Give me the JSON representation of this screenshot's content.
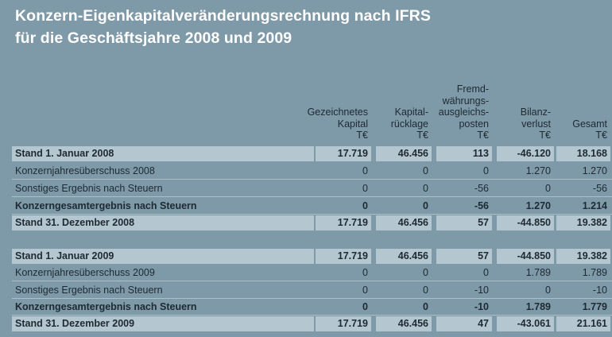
{
  "title": [
    "Konzern-Eigenkapitalveränderungsrechnung nach IFRS",
    "für die Geschäftsjahre 2008 und 2009"
  ],
  "columns": [
    [
      "Gezeichnetes",
      "Kapital",
      "T€"
    ],
    [
      "Kapital-",
      "rücklage",
      "T€"
    ],
    [
      "Fremd-",
      "währungs-",
      "ausgleichs-",
      "posten",
      "T€"
    ],
    [
      "Bilanz-",
      "verlust",
      "T€"
    ],
    [
      "Gesamt",
      "T€"
    ]
  ],
  "rows": [
    {
      "label": "Stand 1. Januar 2008",
      "values": [
        "17.719",
        "46.456",
        "113",
        "-46.120",
        "18.168"
      ],
      "style": "bold light"
    },
    {
      "label": "Konzernjahresüberschuss 2008",
      "values": [
        "0",
        "0",
        "0",
        "1.270",
        "1.270"
      ],
      "style": ""
    },
    {
      "label": "Sonstiges Ergebnis nach Steuern",
      "values": [
        "0",
        "0",
        "-56",
        "0",
        "-56"
      ],
      "style": ""
    },
    {
      "label": "Konzerngesamtergebnis nach Steuern",
      "values": [
        "0",
        "0",
        "-56",
        "1.270",
        "1.214"
      ],
      "style": "bold"
    },
    {
      "label": "Stand 31. Dezember 2008",
      "values": [
        "17.719",
        "46.456",
        "57",
        "-44.850",
        "19.382"
      ],
      "style": "bold light"
    },
    {
      "label": "Stand 1. Januar 2009",
      "values": [
        "17.719",
        "46.456",
        "57",
        "-44.850",
        "19.382"
      ],
      "style": "bold light"
    },
    {
      "label": "Konzernjahresüberschuss 2009",
      "values": [
        "0",
        "0",
        "0",
        "1.789",
        "1.789"
      ],
      "style": ""
    },
    {
      "label": "Sonstiges Ergebnis nach Steuern",
      "values": [
        "0",
        "0",
        "-10",
        "0",
        "-10"
      ],
      "style": ""
    },
    {
      "label": "Konzerngesamtergebnis nach Steuern",
      "values": [
        "0",
        "0",
        "-10",
        "1.789",
        "1.779"
      ],
      "style": "bold"
    },
    {
      "label": "Stand 31. Dezember 2009",
      "values": [
        "17.719",
        "46.456",
        "47",
        "-43.061",
        "21.161"
      ],
      "style": "bold light"
    }
  ]
}
